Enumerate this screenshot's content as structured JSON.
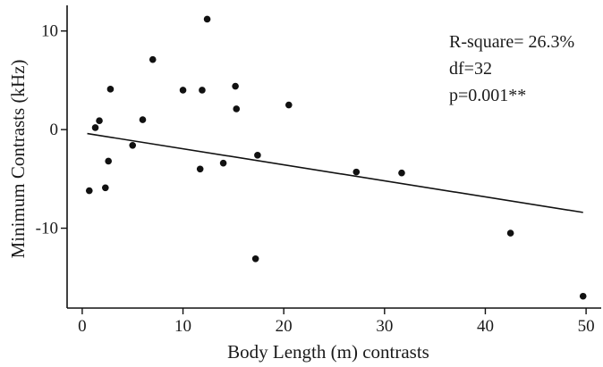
{
  "chart_data": {
    "type": "scatter",
    "title": "",
    "xlabel": "Body Length (m) contrasts",
    "ylabel": "Minimum Contrasts (kHz)",
    "xlim": [
      -1.5,
      51.5
    ],
    "ylim": [
      -18.1,
      12.6
    ],
    "x_ticks": [
      0,
      10,
      20,
      30,
      40,
      50
    ],
    "y_ticks": [
      -10,
      0,
      10
    ],
    "grid": false,
    "legend": "none",
    "series": [
      {
        "x": [
          0.7,
          1.3,
          1.7,
          2.3,
          2.6,
          2.8,
          5.0,
          6.0,
          7.0,
          10.0,
          11.7,
          11.9,
          12.4,
          14.0,
          15.2,
          15.3,
          17.2,
          17.4,
          20.5,
          27.2,
          31.7,
          42.5,
          49.7
        ],
        "y": [
          -6.2,
          0.2,
          0.9,
          -5.9,
          -3.2,
          4.1,
          -1.6,
          1.0,
          7.1,
          4.0,
          -4.0,
          4.0,
          11.2,
          -3.4,
          4.4,
          2.1,
          -13.1,
          -2.6,
          2.5,
          -4.3,
          -4.4,
          -10.5,
          -16.9
        ]
      }
    ],
    "trendline": {
      "x": [
        0.5,
        49.7
      ],
      "y": [
        -0.4,
        -8.4
      ]
    },
    "annotations": [
      "R-square= 26.3%",
      "df=32",
      "p=0.001**"
    ],
    "colors": {
      "point": "#111111",
      "line": "#111111",
      "axis": "#111111"
    }
  }
}
